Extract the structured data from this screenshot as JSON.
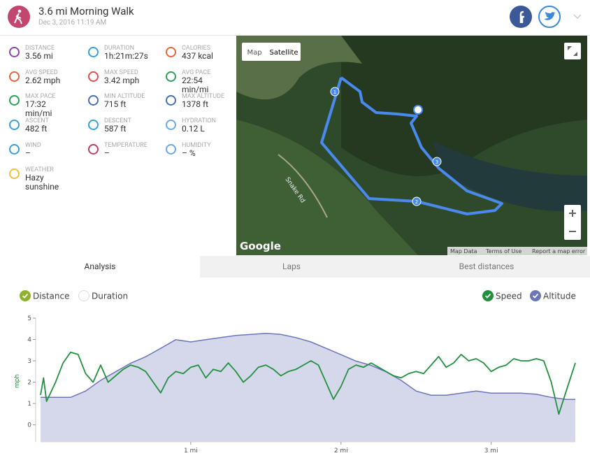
{
  "header": {
    "title": "3.6 mi Morning Walk",
    "subtitle": "Dec 3, 2016 11:19 AM"
  },
  "stats": [
    {
      "label": "DISTANCE",
      "value": "3.56 mi"
    },
    {
      "label": "DURATION",
      "value": "1h:21m:27s"
    },
    {
      "label": "CALORIES",
      "value": "437 kcal"
    },
    {
      "label": "AVG SPEED",
      "value": "2.62 mph"
    },
    {
      "label": "MAX SPEED",
      "value": "3.42 mph"
    },
    {
      "label": "AVG PACE",
      "value": "22:54 min/mi"
    },
    {
      "label": "MAX PACE",
      "value": "17:32 min/mi"
    },
    {
      "label": "MIN ALTITUDE",
      "value": "715 ft"
    },
    {
      "label": "MAX ALTITUDE",
      "value": "1378 ft"
    },
    {
      "label": "ASCENT",
      "value": "482 ft"
    },
    {
      "label": "DESCENT",
      "value": "587 ft"
    },
    {
      "label": "HYDRATION",
      "value": "0.12 L"
    },
    {
      "label": "WIND",
      "value": "–"
    },
    {
      "label": "TEMPERATURE",
      "value": "–"
    },
    {
      "label": "HUMIDITY",
      "value": "– %"
    },
    {
      "label": "WEATHER",
      "value": "Hazy sunshine"
    }
  ],
  "map": {
    "buttons": [
      "Map",
      "Satellite"
    ],
    "road": "Snake Rd",
    "brand": "Google",
    "markers": [
      "1",
      "2",
      "3"
    ],
    "footer": [
      "Map Data",
      "Terms of Use",
      "Report a map error"
    ]
  },
  "tabs": [
    "Analysis",
    "Laps",
    "Best distances"
  ],
  "chart_data": {
    "type": "line",
    "x_toggles": [
      "Distance",
      "Duration"
    ],
    "ylabel": "mph",
    "xlim": [
      0,
      3.56
    ],
    "xticks": [
      {
        "value": 1,
        "label": "1 mi"
      },
      {
        "value": 2,
        "label": "2 mi"
      },
      {
        "value": 3,
        "label": "3 mi"
      }
    ],
    "ylim": [
      -0.8,
      5
    ],
    "yticks": [
      0,
      1,
      2,
      3,
      4,
      5
    ],
    "y2lim": [
      290,
      1530
    ],
    "series": [
      {
        "name": "Speed",
        "color": "#23903f",
        "x": [
          0,
          0.02,
          0.04,
          0.1,
          0.15,
          0.2,
          0.25,
          0.3,
          0.35,
          0.4,
          0.45,
          0.5,
          0.55,
          0.6,
          0.65,
          0.7,
          0.75,
          0.8,
          0.85,
          0.9,
          0.95,
          1.0,
          1.05,
          1.1,
          1.15,
          1.2,
          1.25,
          1.3,
          1.35,
          1.4,
          1.45,
          1.5,
          1.55,
          1.6,
          1.65,
          1.7,
          1.75,
          1.8,
          1.85,
          1.9,
          1.95,
          2.0,
          2.05,
          2.1,
          2.15,
          2.2,
          2.25,
          2.3,
          2.35,
          2.4,
          2.45,
          2.5,
          2.55,
          2.6,
          2.65,
          2.7,
          2.75,
          2.8,
          2.85,
          2.9,
          2.95,
          3.0,
          3.05,
          3.1,
          3.15,
          3.2,
          3.25,
          3.3,
          3.35,
          3.4,
          3.45,
          3.5,
          3.56
        ],
        "values": [
          1.4,
          2.2,
          1.1,
          2.0,
          2.9,
          3.4,
          3.3,
          2.4,
          2.0,
          2.8,
          2.0,
          2.3,
          2.6,
          2.8,
          2.7,
          2.5,
          2.0,
          1.5,
          2.2,
          2.5,
          2.4,
          2.7,
          2.8,
          2.2,
          2.6,
          2.5,
          2.9,
          2.5,
          2.0,
          2.3,
          2.7,
          2.8,
          2.6,
          2.3,
          2.5,
          2.6,
          2.8,
          3.0,
          2.8,
          2.0,
          1.2,
          1.8,
          2.6,
          2.8,
          2.7,
          2.9,
          2.7,
          2.5,
          2.3,
          2.2,
          2.4,
          2.5,
          2.4,
          2.8,
          3.2,
          2.7,
          2.9,
          3.3,
          3.0,
          3.1,
          2.9,
          2.5,
          2.7,
          2.8,
          3.1,
          3.0,
          3.0,
          3.1,
          3.0,
          2.0,
          0.5,
          1.6,
          2.9
        ]
      },
      {
        "name": "Altitude",
        "color": "#6b76b8",
        "axis": "y2",
        "fill": "#d5d8ea",
        "x": [
          0,
          0.1,
          0.2,
          0.3,
          0.4,
          0.5,
          0.6,
          0.7,
          0.8,
          0.9,
          1.0,
          1.1,
          1.2,
          1.3,
          1.4,
          1.5,
          1.6,
          1.7,
          1.8,
          1.9,
          2.0,
          2.1,
          2.2,
          2.3,
          2.4,
          2.5,
          2.6,
          2.7,
          2.8,
          2.9,
          3.0,
          3.1,
          3.2,
          3.3,
          3.4,
          3.5,
          3.56
        ],
        "values": [
          736,
          736,
          736,
          800,
          907,
          993,
          1079,
          1143,
          1228,
          1314,
          1292,
          1314,
          1335,
          1357,
          1367,
          1378,
          1367,
          1335,
          1292,
          1228,
          1164,
          1100,
          1057,
          993,
          907,
          800,
          758,
          758,
          779,
          800,
          779,
          779,
          779,
          768,
          736,
          715,
          715
        ]
      }
    ]
  }
}
